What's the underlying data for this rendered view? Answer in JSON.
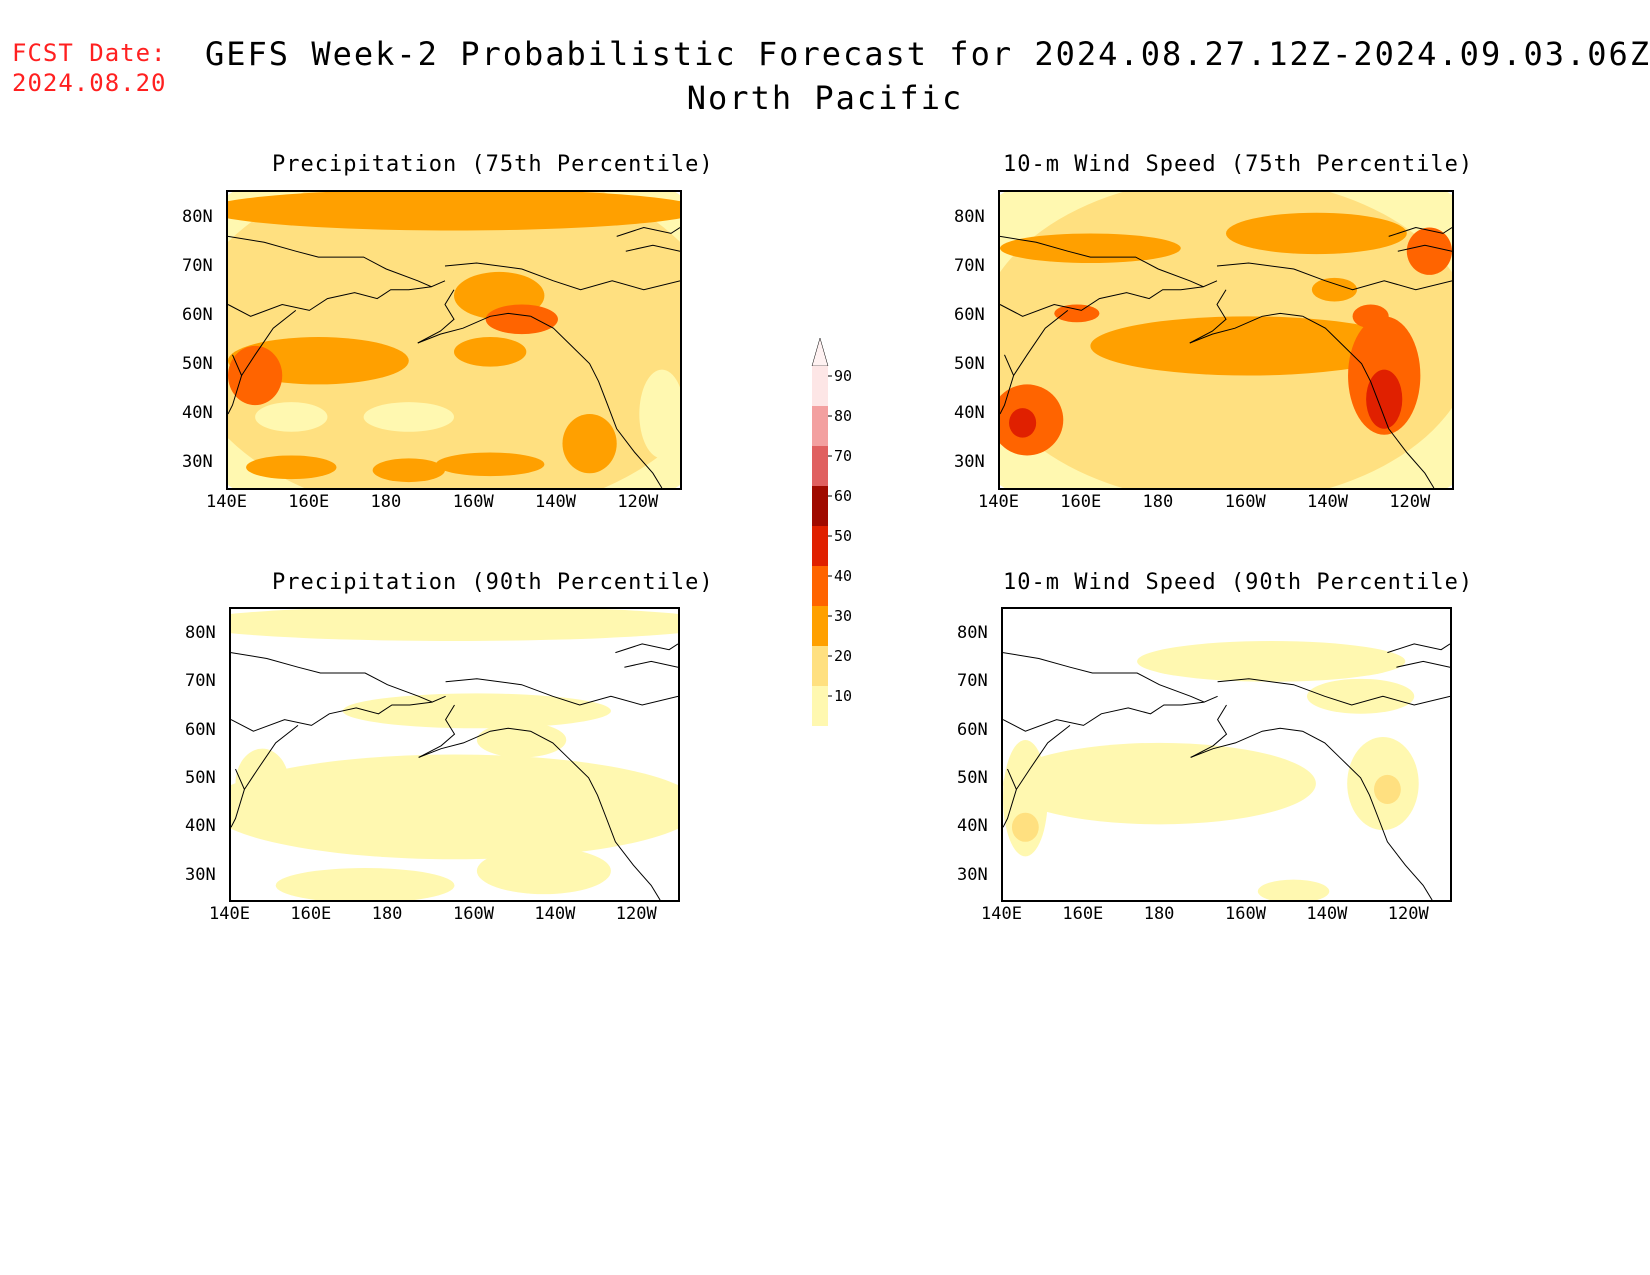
{
  "header": {
    "fcst_label": "FCST Date:",
    "fcst_date": "2024.08.20",
    "title_line1": "GEFS Week-2 Probabilistic Forecast for 2024.08.27.12Z-2024.09.03.06Z",
    "title_line2": "North Pacific"
  },
  "panels": [
    {
      "title": "Precipitation (75th Percentile)"
    },
    {
      "title": "10-m Wind Speed (75th Percentile)"
    },
    {
      "title": "Precipitation (90th Percentile)"
    },
    {
      "title": "10-m Wind Speed (90th Percentile)"
    }
  ],
  "axes": {
    "lat_labels": [
      "80N",
      "70N",
      "60N",
      "50N",
      "40N",
      "30N"
    ],
    "lon_labels": [
      "140E",
      "160E",
      "180",
      "160W",
      "140W",
      "120W"
    ]
  },
  "colorbar": {
    "levels": [
      "90",
      "80",
      "70",
      "60",
      "50",
      "40",
      "30",
      "20",
      "10"
    ],
    "colors": [
      "#fde6e6",
      "#f3a0a0",
      "#e06060",
      "#a00a00",
      "#e02000",
      "#ff6400",
      "#ffa000",
      "#ffe080",
      "#fff8b0"
    ]
  }
}
